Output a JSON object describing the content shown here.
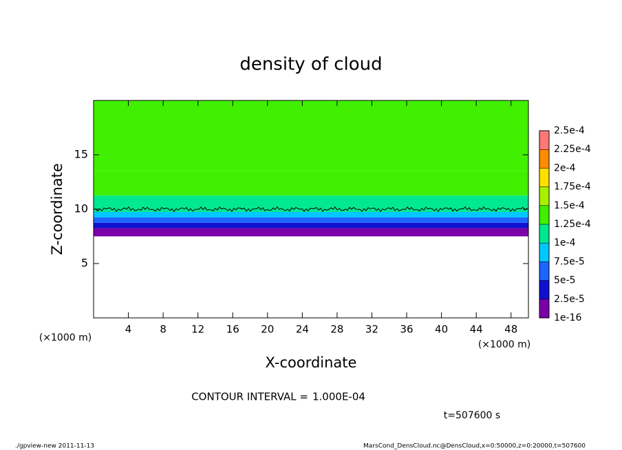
{
  "chart_data": {
    "type": "contour",
    "title": "density of cloud",
    "x_label": "X-coordinate",
    "y_label": "Z-coordinate",
    "x_unit": "(×1000 m)",
    "y_unit": "(×1000 m)",
    "xlim": [
      0,
      50
    ],
    "ylim": [
      0,
      20
    ],
    "xticks": [
      4,
      8,
      12,
      16,
      20,
      24,
      28,
      32,
      36,
      40,
      44,
      48
    ],
    "yticks": [
      5,
      10,
      15
    ],
    "z": [
      7.5,
      8,
      8.5,
      9,
      9.5,
      10,
      10.5,
      12,
      15,
      19.5
    ],
    "density": [
      1e-08,
      2e-05,
      4e-05,
      6e-05,
      8e-05,
      0.0001,
      0.00012,
      0.00013,
      0.000135,
      0.00013
    ],
    "levels": [
      {
        "value": 1e-16,
        "label": "1e-16"
      },
      {
        "value": 2.5e-05,
        "label": "2.5e-5"
      },
      {
        "value": 5e-05,
        "label": "5e-5"
      },
      {
        "value": 7.5e-05,
        "label": "7.5e-5"
      },
      {
        "value": 0.0001,
        "label": "1e-4"
      },
      {
        "value": 0.000125,
        "label": "1.25e-4"
      },
      {
        "value": 0.00015,
        "label": "1.5e-4"
      },
      {
        "value": 0.000175,
        "label": "1.75e-4"
      },
      {
        "value": 0.0002,
        "label": "2e-4"
      },
      {
        "value": 0.000225,
        "label": "2.25e-4"
      },
      {
        "value": 0.00025,
        "label": "2.5e-4"
      }
    ],
    "colors": [
      "#7a00a8",
      "#1010d0",
      "#1e64ff",
      "#00c8ff",
      "#00e890",
      "#40f000",
      "#a8f000",
      "#ffe000",
      "#ff8c00",
      "#ff7878"
    ],
    "contour_label": "CONTOUR INTERVAL =",
    "contour_interval": {
      "value": 0.0001,
      "label": "1.000E-04"
    },
    "time": "t=507600 s",
    "footer_left": "./gpview-new   2011-11-13",
    "footer_right": "MarsCond_DensCloud.nc@DensCloud,x=0:50000,z=0:20000,t=507600"
  }
}
